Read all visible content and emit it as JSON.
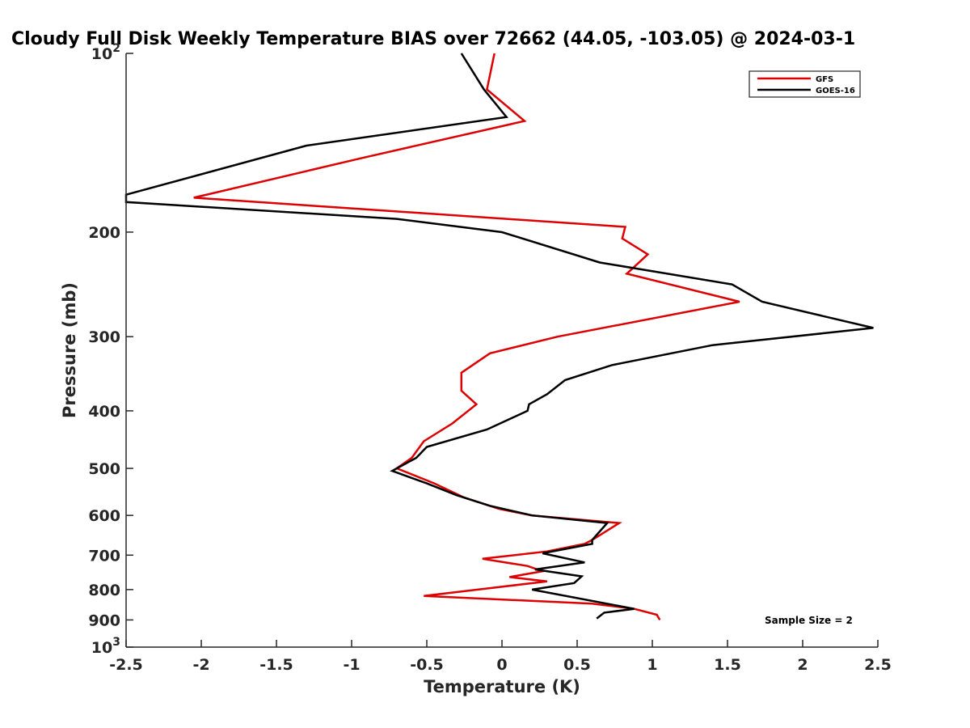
{
  "chart_data": {
    "type": "line",
    "title": "Cloudy Full Disk Weekly Temperature BIAS over 72662 (44.05, -103.05) @ 2024-03-1",
    "xlabel": "Temperature (K)",
    "ylabel": "Pressure (mb)",
    "xlim": [
      -2.5,
      2.5
    ],
    "ylim": [
      100,
      1000
    ],
    "y_scale": "log",
    "y_direction": "reversed",
    "grid": false,
    "legend_position": "top-right",
    "x_ticks": [
      -2.5,
      -2,
      -1.5,
      -1,
      -0.5,
      0,
      0.5,
      1,
      1.5,
      2,
      2.5
    ],
    "x_tick_labels": [
      "-2.5",
      "-2",
      "-1.5",
      "-1",
      "-0.5",
      "0",
      "0.5",
      "1",
      "1.5",
      "2",
      "2.5"
    ],
    "y_ticks": [
      {
        "value": 100,
        "base": "10",
        "exp": "2"
      },
      {
        "value": 200,
        "label": "200"
      },
      {
        "value": 300,
        "label": "300"
      },
      {
        "value": 400,
        "label": "400"
      },
      {
        "value": 500,
        "label": "500"
      },
      {
        "value": 600,
        "label": "600"
      },
      {
        "value": 700,
        "label": "700"
      },
      {
        "value": 800,
        "label": "800"
      },
      {
        "value": 900,
        "label": "900"
      },
      {
        "value": 1000,
        "base": "10",
        "exp": "3"
      }
    ],
    "annotation": "Sample Size = 2",
    "series": [
      {
        "name": "GFS",
        "color": "#dd0000",
        "points": [
          [
            -0.05,
            100
          ],
          [
            -0.1,
            115
          ],
          [
            0.15,
            130
          ],
          [
            -0.93,
            150
          ],
          [
            -2.05,
            175
          ],
          [
            0.82,
            196
          ],
          [
            0.8,
            205
          ],
          [
            0.97,
            218
          ],
          [
            0.83,
            235
          ],
          [
            1.58,
            262
          ],
          [
            0.37,
            300
          ],
          [
            -0.08,
            320
          ],
          [
            -0.27,
            345
          ],
          [
            -0.27,
            370
          ],
          [
            -0.17,
            390
          ],
          [
            -0.33,
            420
          ],
          [
            -0.52,
            450
          ],
          [
            -0.6,
            480
          ],
          [
            -0.7,
            500
          ],
          [
            -0.45,
            530
          ],
          [
            -0.25,
            560
          ],
          [
            -0.02,
            585
          ],
          [
            0.2,
            600
          ],
          [
            0.78,
            618
          ],
          [
            0.6,
            660
          ],
          [
            0.55,
            670
          ],
          [
            0.3,
            690
          ],
          [
            -0.13,
            710
          ],
          [
            0.17,
            730
          ],
          [
            0.27,
            745
          ],
          [
            0.05,
            762
          ],
          [
            0.3,
            775
          ],
          [
            -0.07,
            795
          ],
          [
            -0.52,
            820
          ],
          [
            0.6,
            845
          ],
          [
            0.88,
            862
          ],
          [
            1.03,
            882
          ],
          [
            1.05,
            900
          ]
        ]
      },
      {
        "name": "GOES-16",
        "color": "#000000",
        "points": [
          [
            -0.27,
            100
          ],
          [
            -0.12,
            115
          ],
          [
            0.03,
            128
          ],
          [
            -1.3,
            143
          ],
          [
            -2.5,
            173
          ],
          [
            -2.5,
            178
          ],
          [
            -0.7,
            190
          ],
          [
            0.0,
            200
          ],
          [
            0.65,
            225
          ],
          [
            1.53,
            245
          ],
          [
            1.73,
            262
          ],
          [
            2.47,
            290
          ],
          [
            1.4,
            310
          ],
          [
            0.73,
            335
          ],
          [
            0.42,
            355
          ],
          [
            0.3,
            375
          ],
          [
            0.18,
            390
          ],
          [
            0.17,
            400
          ],
          [
            -0.1,
            430
          ],
          [
            -0.5,
            460
          ],
          [
            -0.57,
            480
          ],
          [
            -0.73,
            505
          ],
          [
            -0.5,
            530
          ],
          [
            -0.3,
            555
          ],
          [
            -0.08,
            578
          ],
          [
            0.2,
            600
          ],
          [
            0.7,
            618
          ],
          [
            0.6,
            660
          ],
          [
            0.6,
            670
          ],
          [
            0.27,
            695
          ],
          [
            0.55,
            720
          ],
          [
            0.22,
            740
          ],
          [
            0.53,
            760
          ],
          [
            0.48,
            780
          ],
          [
            0.2,
            800
          ],
          [
            0.88,
            862
          ],
          [
            0.68,
            875
          ],
          [
            0.63,
            895
          ]
        ]
      }
    ]
  }
}
